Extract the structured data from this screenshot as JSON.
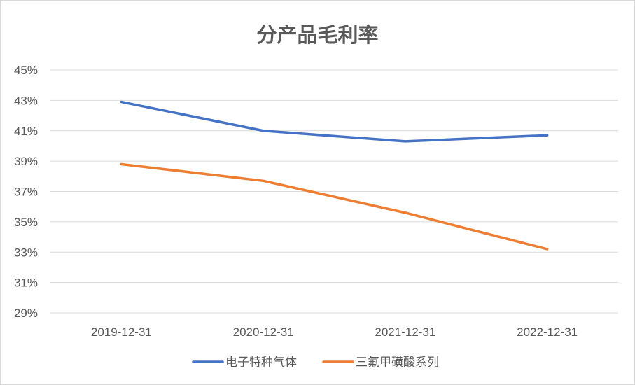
{
  "chart_data": {
    "type": "line",
    "title": "分产品毛利率",
    "xlabel": "",
    "ylabel": "",
    "categories": [
      "2019-12-31",
      "2020-12-31",
      "2021-12-31",
      "2022-12-31"
    ],
    "y_ticks": [
      "29%",
      "31%",
      "33%",
      "35%",
      "37%",
      "39%",
      "41%",
      "43%",
      "45%"
    ],
    "ylim": [
      29,
      45
    ],
    "grid": true,
    "legend_position": "bottom",
    "series": [
      {
        "name": "电子特种气体",
        "color": "#4472c4",
        "values": [
          42.9,
          41.0,
          40.3,
          40.7
        ]
      },
      {
        "name": "三氟甲磺酸系列",
        "color": "#ed7d31",
        "values": [
          38.8,
          37.7,
          35.6,
          33.2
        ]
      }
    ]
  }
}
